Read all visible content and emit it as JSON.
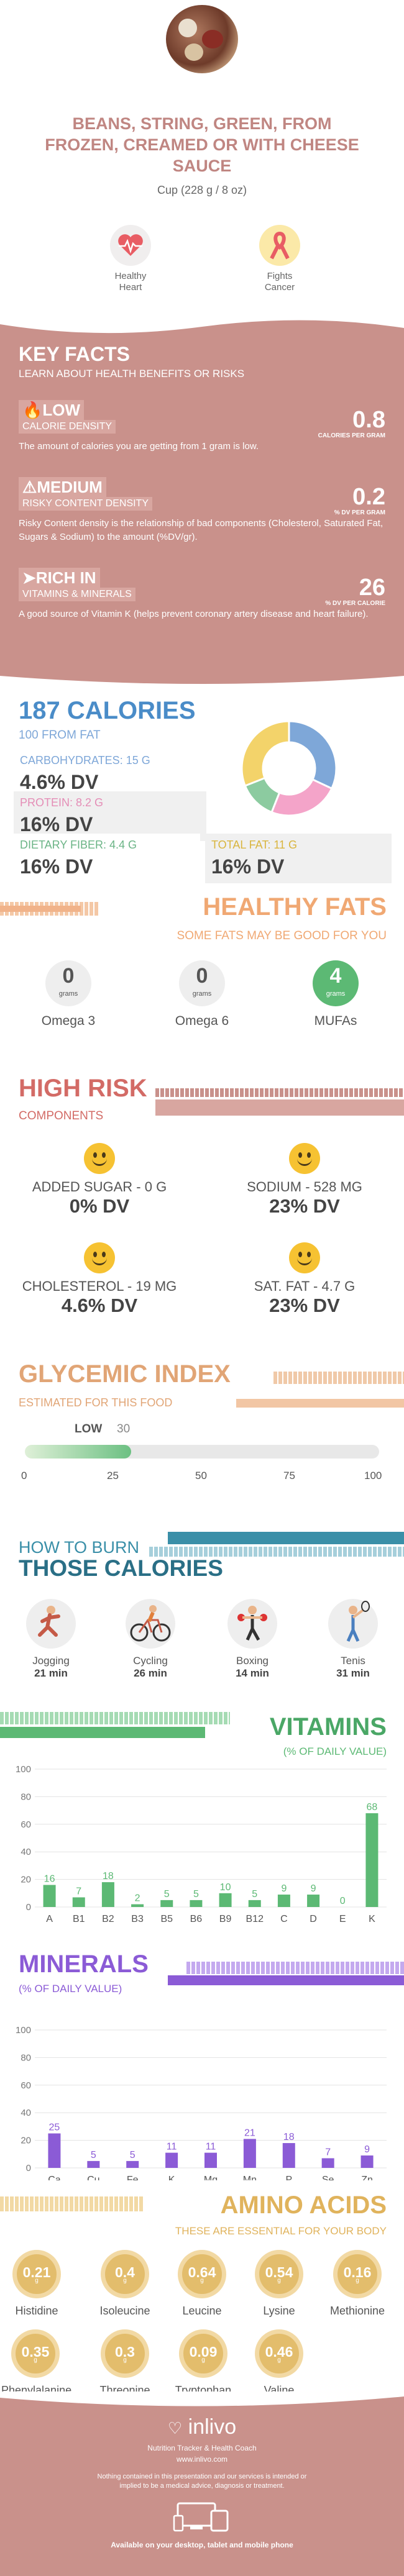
{
  "header": {
    "title": "BEANS, STRING, GREEN, FROM FROZEN, CREAMED OR WITH CHEESE SAUCE",
    "serving": "Cup (228 g / 8 oz)"
  },
  "benefits": [
    {
      "label_line1": "Healthy",
      "label_line2": "Heart",
      "color": "#e85d64"
    },
    {
      "label_line1": "Fights",
      "label_line2": "Cancer",
      "color": "#e85d64"
    }
  ],
  "key_facts": {
    "title": "KEY FACTS",
    "subtitle": "LEARN ABOUT HEALTH BENEFITS OR RISKS",
    "items": [
      {
        "level": "LOW",
        "name": "CALORIE DENSITY",
        "value": "0.8",
        "unit": "CALORIES PER GRAM",
        "desc": "The amount of calories you are getting from 1 gram is low."
      },
      {
        "level": "MEDIUM",
        "name": "RISKY CONTENT DENSITY",
        "value": "0.2",
        "unit": "% DV PER GRAM",
        "desc": "Risky Content density is the relationship of bad components (Cholesterol, Saturated Fat, Sugars & Sodium) to the amount (%DV/gr)."
      },
      {
        "level": "RICH  IN",
        "name": "VITAMINS & MINERALS",
        "value": "26",
        "unit": "% DV PER CALORIE",
        "desc": "A good source of Vitamin K (helps prevent coronary artery disease and heart failure)."
      }
    ]
  },
  "calories": {
    "title": "187 CALORIES",
    "subtitle": "100 FROM FAT",
    "items": [
      {
        "label": "CARBOHYDRATES: 15 g",
        "dv": "4.6% DV",
        "color": "#7ea7d8"
      },
      {
        "label": "PROTEIN: 8.2 g",
        "dv": "16% DV",
        "color": "#f4a4c9"
      },
      {
        "label": "DIETARY FIBER: 4.4 g",
        "dv": "16% DV",
        "color": "#8ccba0"
      },
      {
        "label": "TOTAL FAT: 11 g",
        "dv": "16% DV",
        "color": "#f3d36a"
      }
    ],
    "donut": [
      {
        "name": "carbs",
        "value": 32,
        "color": "#7ea7d8"
      },
      {
        "name": "protein",
        "value": 24,
        "color": "#f4a4c9"
      },
      {
        "name": "fiber",
        "value": 13,
        "color": "#8ccba0"
      },
      {
        "name": "fat",
        "value": 31,
        "color": "#f3d36a"
      }
    ]
  },
  "healthy_fats": {
    "title": "HEALTHY FATS",
    "subtitle": "SOME FATS MAY BE GOOD FOR YOU",
    "items": [
      {
        "value": "0",
        "unit": "grams",
        "label": "Omega 3"
      },
      {
        "value": "0",
        "unit": "grams",
        "label": "Omega 6"
      },
      {
        "value": "4",
        "unit": "grams",
        "label": "MUFAs"
      }
    ]
  },
  "high_risk": {
    "title": "HIGH RISK",
    "subtitle": "COMPONENTS",
    "items": [
      {
        "label": "ADDED SUGAR - 0 g",
        "dv": "0% DV"
      },
      {
        "label": "SODIUM - 528 mg",
        "dv": "23% DV"
      },
      {
        "label": "CHOLESTEROL - 19 mg",
        "dv": "4.6% DV"
      },
      {
        "label": "SAT. FAT - 4.7 g",
        "dv": "23% DV"
      }
    ]
  },
  "glycemic": {
    "title": "GLYCEMIC INDEX",
    "subtitle": "ESTIMATED FOR THIS FOOD",
    "level": "LOW",
    "value": "30",
    "value_fraction": 0.3,
    "ticks": [
      "0",
      "25",
      "50",
      "75",
      "100"
    ]
  },
  "burn": {
    "title1": "HOW TO BURN",
    "title2": "THOSE CALORIES",
    "items": [
      {
        "label": "Jogging",
        "time": "21 min"
      },
      {
        "label": "Cycling",
        "time": "26 min"
      },
      {
        "label": "Boxing",
        "time": "14 min"
      },
      {
        "label": "Tenis",
        "time": "31 min"
      }
    ]
  },
  "vitamins": {
    "title": "VITAMINS",
    "subtitle": "(% OF DAILY VALUE)"
  },
  "minerals": {
    "title": "MINERALS",
    "subtitle": "(% OF DAILY VALUE)"
  },
  "chart_data": [
    {
      "type": "bar",
      "categories": [
        "A",
        "B1",
        "B2",
        "B3",
        "B5",
        "B6",
        "B9",
        "B12",
        "C",
        "D",
        "E",
        "K"
      ],
      "values": [
        16,
        7,
        18,
        2,
        5,
        5,
        10,
        5,
        9,
        9,
        0,
        68
      ],
      "ylim": [
        0,
        100
      ],
      "yticks": [
        "0",
        "20",
        "40",
        "60",
        "80",
        "100"
      ],
      "color": "#5cb974"
    },
    {
      "type": "bar",
      "categories": [
        "Ca",
        "Cu",
        "Fe",
        "K",
        "Mg",
        "Mn",
        "P",
        "Se",
        "Zn"
      ],
      "values": [
        25,
        5,
        5,
        11,
        11,
        21,
        18,
        7,
        9
      ],
      "ylim": [
        0,
        100
      ],
      "yticks": [
        "0",
        "20",
        "40",
        "60",
        "80",
        "100"
      ],
      "color": "#8b5bd6"
    }
  ],
  "amino": {
    "title": "AMINO ACIDS",
    "subtitle": "THESE ARE ESSENTIAL FOR YOUR BODY",
    "unit": "g",
    "items": [
      {
        "v": "0.21",
        "n": "Histidine"
      },
      {
        "v": "0.4",
        "n": "Isoleucine"
      },
      {
        "v": "0.64",
        "n": "Leucine"
      },
      {
        "v": "0.54",
        "n": "Lysine"
      },
      {
        "v": "0.16",
        "n": "Methionine"
      },
      {
        "v": "0.35",
        "n": "Phenylalanine"
      },
      {
        "v": "0.3",
        "n": "Threonine"
      },
      {
        "v": "0.09",
        "n": "Tryptophan"
      },
      {
        "v": "0.46",
        "n": "Valine"
      }
    ]
  },
  "footer": {
    "brand": "inlivo",
    "tagline": "Nutrition Tracker & Health Coach",
    "url": "www.inlivo.com",
    "disclaimer": "Nothing contained in this presentation and our services is intended or implied to be a medical advice, diagnosis or treatment.",
    "available": "Available on your desktop, tablet and mobile phone"
  }
}
